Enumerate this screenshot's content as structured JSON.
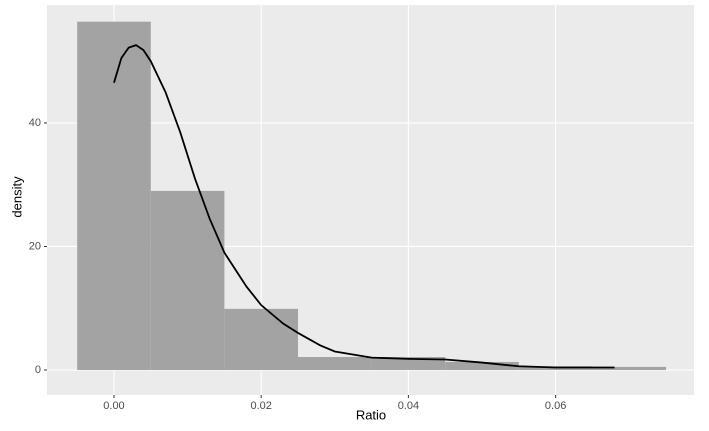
{
  "chart_data": {
    "type": "histogram",
    "xlabel": "Ratio",
    "ylabel": "density",
    "bins": [
      -0.005,
      0.005,
      0.015,
      0.025,
      0.035,
      0.045,
      0.055,
      0.065,
      0.075
    ],
    "values": [
      56.4,
      29.0,
      9.9,
      2.1,
      2.1,
      1.3,
      0.6,
      0.5
    ],
    "color": "#a3a3a3",
    "density": {
      "color": "#000000",
      "x": [
        0,
        0.001,
        0.002,
        0.003,
        0.004,
        0.005,
        0.007,
        0.009,
        0.011,
        0.013,
        0.015,
        0.018,
        0.02,
        0.023,
        0.025,
        0.028,
        0.03,
        0.035,
        0.04,
        0.045,
        0.05,
        0.055,
        0.06,
        0.068
      ],
      "y": [
        46.5,
        50.5,
        52.2,
        52.6,
        51.8,
        50,
        45,
        38.5,
        31,
        24.5,
        19,
        13.5,
        10.5,
        7.5,
        6,
        4,
        3,
        2,
        1.8,
        1.7,
        1.2,
        0.6,
        0.4,
        0.4
      ]
    },
    "xlim": [
      -0.0091,
      0.0788
    ],
    "ylim": [
      -4.05,
      59.1
    ],
    "xticks": [
      {
        "value": 0,
        "label": "0.00"
      },
      {
        "value": 0.02,
        "label": "0.02"
      },
      {
        "value": 0.04,
        "label": "0.04"
      },
      {
        "value": 0.06,
        "label": "0.06"
      }
    ],
    "yticks": [
      0,
      20,
      40
    ],
    "grid": true
  }
}
